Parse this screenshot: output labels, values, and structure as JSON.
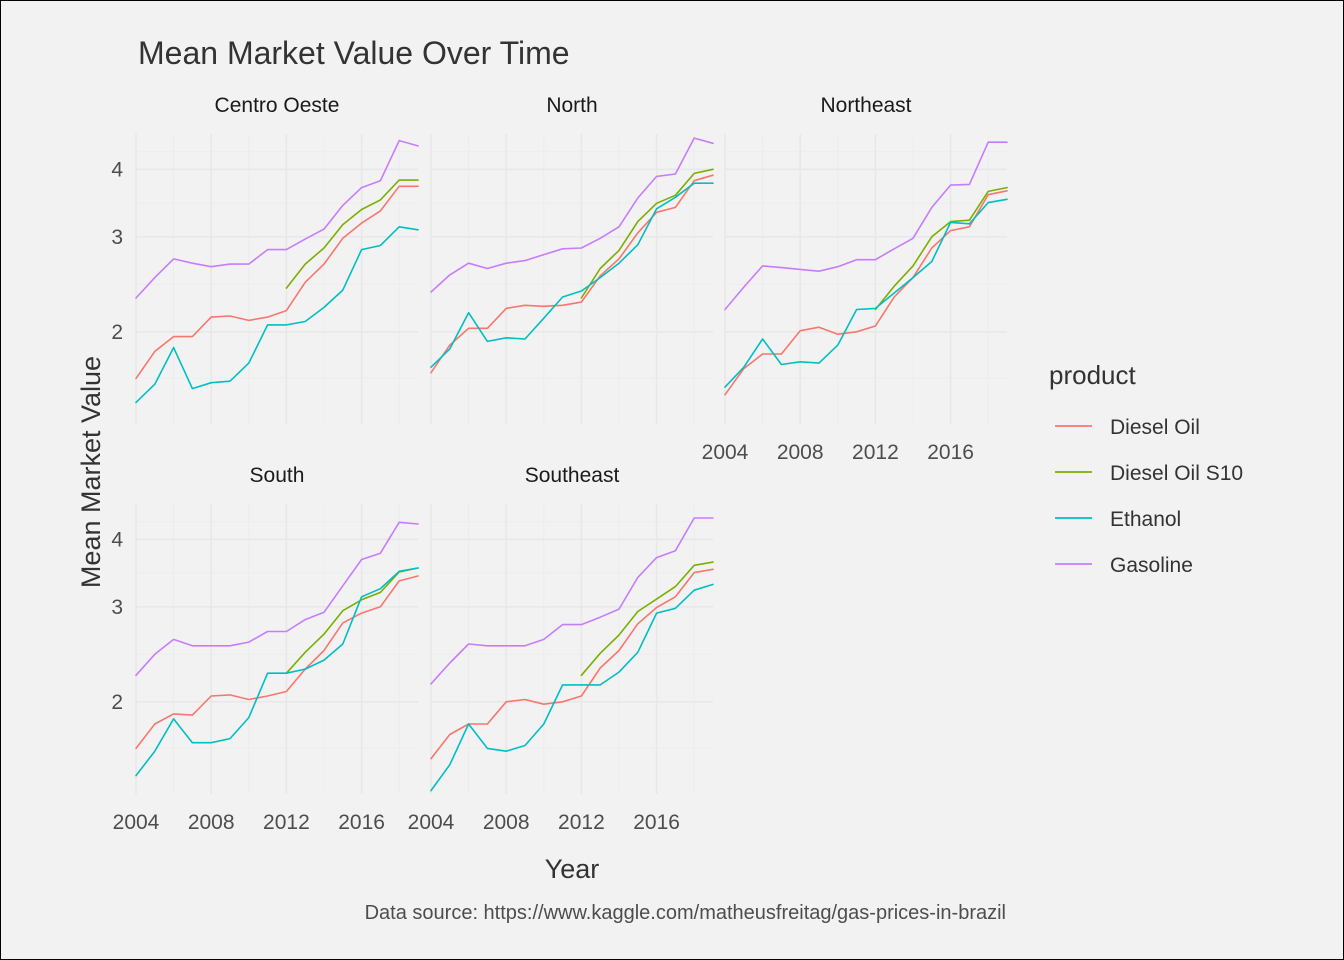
{
  "chart_data": {
    "type": "line",
    "title": "Mean Market Value Over Time",
    "xlabel": "Year",
    "ylabel": "Mean Market Value",
    "caption": "Data source: https://www.kaggle.com/matheusfreitag/gas-prices-in-brazil",
    "y_scale": "log",
    "xlim": [
      2004,
      2019
    ],
    "ylim": [
      1.35,
      4.65
    ],
    "x_ticks": [
      2004,
      2008,
      2012,
      2016
    ],
    "y_ticks": [
      2,
      3,
      4
    ],
    "grid": true,
    "legend": {
      "title": "product",
      "position": "right"
    },
    "years": [
      2004,
      2005,
      2006,
      2007,
      2008,
      2009,
      2010,
      2011,
      2012,
      2013,
      2014,
      2015,
      2016,
      2017,
      2018,
      2019
    ],
    "series_styles": [
      {
        "name": "Diesel Oil",
        "color": "#F8766D"
      },
      {
        "name": "Diesel Oil S10",
        "color": "#7CAE00"
      },
      {
        "name": "Ethanol",
        "color": "#00BFC4"
      },
      {
        "name": "Gasoline",
        "color": "#C77CFF"
      }
    ],
    "facets": [
      {
        "name": "Centro Oeste",
        "series": [
          {
            "name": "Diesel Oil",
            "values": [
              1.64,
              1.84,
              1.96,
              1.96,
              2.13,
              2.14,
              2.1,
              2.13,
              2.19,
              2.47,
              2.67,
              2.98,
              3.18,
              3.35,
              3.72,
              3.72
            ]
          },
          {
            "name": "Diesel Oil S10",
            "values": [
              null,
              null,
              null,
              null,
              null,
              null,
              null,
              null,
              2.41,
              2.67,
              2.86,
              3.16,
              3.37,
              3.51,
              3.82,
              3.82
            ]
          },
          {
            "name": "Ethanol",
            "values": [
              1.48,
              1.6,
              1.87,
              1.57,
              1.61,
              1.62,
              1.75,
              2.06,
              2.06,
              2.09,
              2.22,
              2.39,
              2.84,
              2.89,
              3.13,
              3.09
            ]
          },
          {
            "name": "Gasoline",
            "values": [
              2.31,
              2.52,
              2.73,
              2.68,
              2.64,
              2.67,
              2.67,
              2.84,
              2.84,
              2.97,
              3.1,
              3.43,
              3.7,
              3.81,
              4.52,
              4.42
            ]
          }
        ]
      },
      {
        "name": "North",
        "series": [
          {
            "name": "Diesel Oil",
            "values": [
              1.68,
              1.89,
              2.03,
              2.03,
              2.21,
              2.24,
              2.23,
              2.24,
              2.27,
              2.54,
              2.73,
              3.05,
              3.33,
              3.4,
              3.81,
              3.9
            ]
          },
          {
            "name": "Diesel Oil S10",
            "values": [
              null,
              null,
              null,
              null,
              null,
              null,
              null,
              null,
              2.31,
              2.62,
              2.83,
              3.2,
              3.46,
              3.58,
              3.93,
              4.0
            ]
          },
          {
            "name": "Ethanol",
            "values": [
              1.72,
              1.86,
              2.17,
              1.92,
              1.95,
              1.94,
              2.12,
              2.32,
              2.38,
              2.52,
              2.68,
              2.9,
              3.38,
              3.55,
              3.77,
              3.77
            ]
          },
          {
            "name": "Gasoline",
            "values": [
              2.37,
              2.55,
              2.68,
              2.62,
              2.68,
              2.71,
              2.78,
              2.85,
              2.86,
              2.98,
              3.13,
              3.54,
              3.88,
              3.92,
              4.57,
              4.47
            ]
          }
        ]
      },
      {
        "name": "Northeast",
        "series": [
          {
            "name": "Diesel Oil",
            "values": [
              1.53,
              1.71,
              1.82,
              1.82,
              2.01,
              2.04,
              1.98,
              2.0,
              2.05,
              2.32,
              2.52,
              2.86,
              3.08,
              3.13,
              3.59,
              3.65
            ]
          },
          {
            "name": "Diesel Oil S10",
            "values": [
              null,
              null,
              null,
              null,
              null,
              null,
              null,
              null,
              2.2,
              2.43,
              2.65,
              3.0,
              3.2,
              3.22,
              3.64,
              3.7
            ]
          },
          {
            "name": "Ethanol",
            "values": [
              1.58,
              1.72,
              1.94,
              1.74,
              1.76,
              1.75,
              1.89,
              2.2,
              2.21,
              2.36,
              2.52,
              2.7,
              3.19,
              3.17,
              3.47,
              3.52
            ]
          },
          {
            "name": "Gasoline",
            "values": [
              2.2,
              2.42,
              2.65,
              2.63,
              2.61,
              2.59,
              2.64,
              2.72,
              2.72,
              2.85,
              2.98,
              3.4,
              3.74,
              3.75,
              4.49,
              4.49
            ]
          }
        ]
      },
      {
        "name": "South",
        "series": [
          {
            "name": "Diesel Oil",
            "values": [
              1.64,
              1.82,
              1.9,
              1.89,
              2.05,
              2.06,
              2.02,
              2.05,
              2.09,
              2.3,
              2.49,
              2.8,
              2.92,
              3.0,
              3.35,
              3.42
            ]
          },
          {
            "name": "Diesel Oil S10",
            "values": [
              null,
              null,
              null,
              null,
              null,
              null,
              null,
              null,
              2.26,
              2.47,
              2.67,
              2.95,
              3.09,
              3.19,
              3.48,
              3.54
            ]
          },
          {
            "name": "Ethanol",
            "values": [
              1.46,
              1.62,
              1.86,
              1.68,
              1.68,
              1.71,
              1.87,
              2.26,
              2.26,
              2.3,
              2.39,
              2.56,
              3.13,
              3.24,
              3.49,
              3.54
            ]
          },
          {
            "name": "Gasoline",
            "values": [
              2.24,
              2.45,
              2.61,
              2.54,
              2.54,
              2.54,
              2.58,
              2.7,
              2.7,
              2.84,
              2.93,
              3.28,
              3.67,
              3.77,
              4.3,
              4.27
            ]
          }
        ]
      },
      {
        "name": "Southeast",
        "series": [
          {
            "name": "Diesel Oil",
            "values": [
              1.57,
              1.74,
              1.82,
              1.82,
              2.0,
              2.02,
              1.98,
              2.0,
              2.05,
              2.31,
              2.49,
              2.79,
              2.99,
              3.13,
              3.47,
              3.52
            ]
          },
          {
            "name": "Diesel Oil S10",
            "values": [
              null,
              null,
              null,
              null,
              null,
              null,
              null,
              null,
              2.24,
              2.46,
              2.66,
              2.94,
              3.1,
              3.27,
              3.58,
              3.63
            ]
          },
          {
            "name": "Ethanol",
            "values": [
              1.37,
              1.53,
              1.82,
              1.64,
              1.62,
              1.66,
              1.82,
              2.15,
              2.15,
              2.15,
              2.27,
              2.47,
              2.92,
              2.98,
              3.22,
              3.3
            ]
          },
          {
            "name": "Gasoline",
            "values": [
              2.16,
              2.36,
              2.56,
              2.54,
              2.54,
              2.54,
              2.61,
              2.78,
              2.78,
              2.87,
              2.97,
              3.4,
              3.7,
              3.81,
              4.38,
              4.38
            ]
          }
        ]
      }
    ]
  }
}
